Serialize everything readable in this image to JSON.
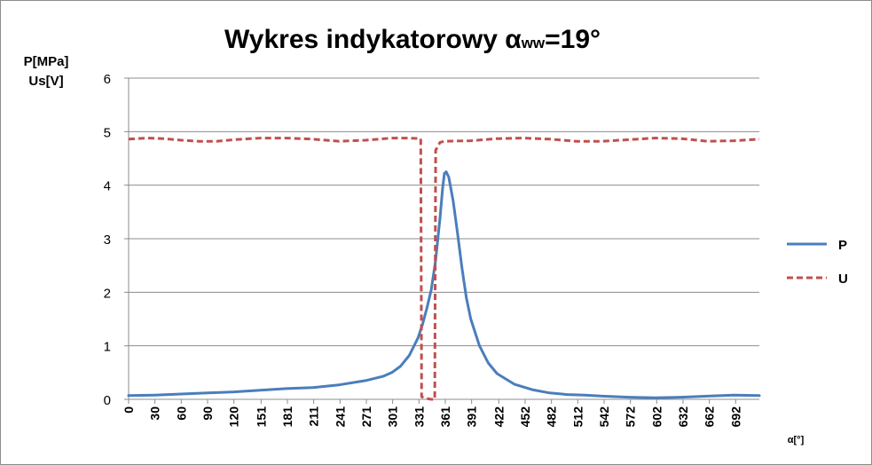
{
  "chart_data": {
    "type": "line",
    "title_main": "Wykres  indykatorowy ",
    "title_symbol": "α",
    "title_subscript": "ww",
    "title_suffix": "=19°",
    "ylabel_line1": "P[MPa]",
    "ylabel_line2": "Us[V]",
    "xlabel": "α[°]",
    "ylim": [
      0,
      6
    ],
    "xlim": [
      0,
      719
    ],
    "yticks": [
      0,
      1,
      2,
      3,
      4,
      5,
      6
    ],
    "xticks": [
      0,
      30,
      60,
      90,
      120,
      151,
      181,
      211,
      241,
      271,
      301,
      331,
      361,
      391,
      422,
      452,
      482,
      512,
      542,
      572,
      602,
      632,
      662,
      692
    ],
    "grid": "horizontal",
    "legend_position": "right",
    "series": [
      {
        "name": "P",
        "color": "#4a7ebb",
        "style": "solid",
        "x": [
          0,
          30,
          60,
          90,
          120,
          150,
          180,
          210,
          240,
          270,
          290,
          300,
          310,
          320,
          330,
          335,
          340,
          345,
          350,
          355,
          358,
          360,
          362,
          365,
          370,
          375,
          380,
          385,
          390,
          400,
          410,
          420,
          440,
          460,
          480,
          500,
          520,
          540,
          570,
          600,
          630,
          660,
          690,
          719
        ],
        "values": [
          0.07,
          0.08,
          0.1,
          0.12,
          0.14,
          0.17,
          0.2,
          0.22,
          0.27,
          0.35,
          0.43,
          0.5,
          0.62,
          0.82,
          1.15,
          1.4,
          1.7,
          2.05,
          2.6,
          3.4,
          3.95,
          4.22,
          4.25,
          4.15,
          3.7,
          3.1,
          2.45,
          1.9,
          1.5,
          1.0,
          0.68,
          0.48,
          0.28,
          0.18,
          0.12,
          0.09,
          0.08,
          0.06,
          0.04,
          0.03,
          0.04,
          0.06,
          0.08,
          0.07
        ]
      },
      {
        "name": "U",
        "color": "#c0504d",
        "style": "dashed",
        "x": [
          0,
          20,
          40,
          60,
          80,
          100,
          120,
          150,
          180,
          210,
          240,
          270,
          300,
          320,
          333,
          334,
          338,
          345,
          349,
          350,
          355,
          360,
          390,
          420,
          450,
          480,
          510,
          540,
          570,
          600,
          630,
          660,
          690,
          719
        ],
        "values": [
          4.86,
          4.88,
          4.87,
          4.84,
          4.82,
          4.82,
          4.85,
          4.88,
          4.88,
          4.86,
          4.82,
          4.84,
          4.88,
          4.88,
          4.87,
          0.05,
          0.02,
          0.0,
          0.0,
          4.65,
          4.8,
          4.82,
          4.83,
          4.87,
          4.88,
          4.86,
          4.82,
          4.82,
          4.85,
          4.88,
          4.87,
          4.82,
          4.83,
          4.86
        ]
      }
    ]
  }
}
